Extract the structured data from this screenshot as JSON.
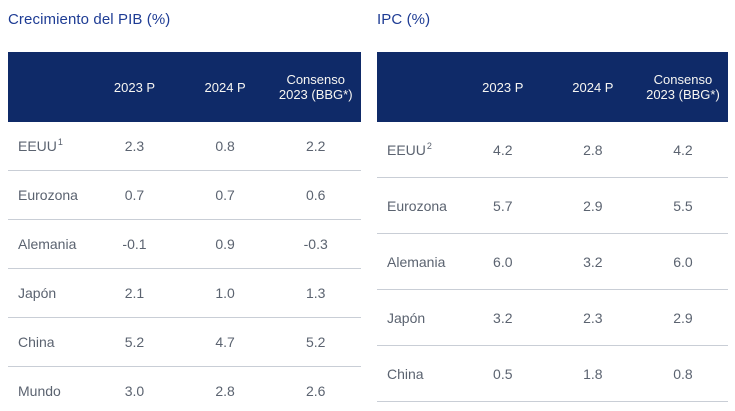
{
  "colors": {
    "header_bg": "#0f2a68",
    "header_text": "#f7f6f2",
    "title_text": "#1e3c94",
    "body_text": "#5b6370",
    "divider": "#c9ced6",
    "background": "#ffffff"
  },
  "tables": [
    {
      "id": "gdp",
      "title": "Crecimiento del PIB (%)",
      "columns": [
        {
          "lines": [
            "2023 P"
          ]
        },
        {
          "lines": [
            "2024 P"
          ]
        },
        {
          "lines": [
            "Consenso",
            "2023 (BBG*)"
          ]
        }
      ],
      "rows": [
        {
          "label": "EEUU",
          "sup": "1",
          "values": [
            "2.3",
            "0.8",
            "2.2"
          ]
        },
        {
          "label": "Eurozona",
          "sup": "",
          "values": [
            "0.7",
            "0.7",
            "0.6"
          ]
        },
        {
          "label": "Alemania",
          "sup": "",
          "values": [
            "-0.1",
            "0.9",
            "-0.3"
          ]
        },
        {
          "label": "Japón",
          "sup": "",
          "values": [
            "2.1",
            "1.0",
            "1.3"
          ]
        },
        {
          "label": "China",
          "sup": "",
          "values": [
            "5.2",
            "4.7",
            "5.2"
          ]
        },
        {
          "label": "Mundo",
          "sup": "",
          "values": [
            "3.0",
            "2.8",
            "2.6"
          ]
        }
      ]
    },
    {
      "id": "ipc",
      "title": "IPC (%)",
      "columns": [
        {
          "lines": [
            "2023 P"
          ]
        },
        {
          "lines": [
            "2024 P"
          ]
        },
        {
          "lines": [
            "Consenso",
            "2023 (BBG*)"
          ]
        }
      ],
      "rows": [
        {
          "label": "EEUU",
          "sup": "2",
          "values": [
            "4.2",
            "2.8",
            "4.2"
          ]
        },
        {
          "label": "Eurozona",
          "sup": "",
          "values": [
            "5.7",
            "2.9",
            "5.5"
          ]
        },
        {
          "label": "Alemania",
          "sup": "",
          "values": [
            "6.0",
            "3.2",
            "6.0"
          ]
        },
        {
          "label": "Japón",
          "sup": "",
          "values": [
            "3.2",
            "2.3",
            "2.9"
          ]
        },
        {
          "label": "China",
          "sup": "",
          "values": [
            "0.5",
            "1.8",
            "0.8"
          ]
        }
      ]
    }
  ],
  "chart_data": [
    {
      "type": "table",
      "title": "Crecimiento del PIB (%)",
      "columns": [
        "",
        "2023 P",
        "2024 P",
        "Consenso 2023 (BBG*)"
      ],
      "rows": [
        [
          "EEUU¹",
          2.3,
          0.8,
          2.2
        ],
        [
          "Eurozona",
          0.7,
          0.7,
          0.6
        ],
        [
          "Alemania",
          -0.1,
          0.9,
          -0.3
        ],
        [
          "Japón",
          2.1,
          1.0,
          1.3
        ],
        [
          "China",
          5.2,
          4.7,
          5.2
        ],
        [
          "Mundo",
          3.0,
          2.8,
          2.6
        ]
      ]
    },
    {
      "type": "table",
      "title": "IPC (%)",
      "columns": [
        "",
        "2023 P",
        "2024 P",
        "Consenso 2023 (BBG*)"
      ],
      "rows": [
        [
          "EEUU²",
          4.2,
          2.8,
          4.2
        ],
        [
          "Eurozona",
          5.7,
          2.9,
          5.5
        ],
        [
          "Alemania",
          6.0,
          3.2,
          6.0
        ],
        [
          "Japón",
          3.2,
          2.3,
          2.9
        ],
        [
          "China",
          0.5,
          1.8,
          0.8
        ]
      ]
    }
  ]
}
